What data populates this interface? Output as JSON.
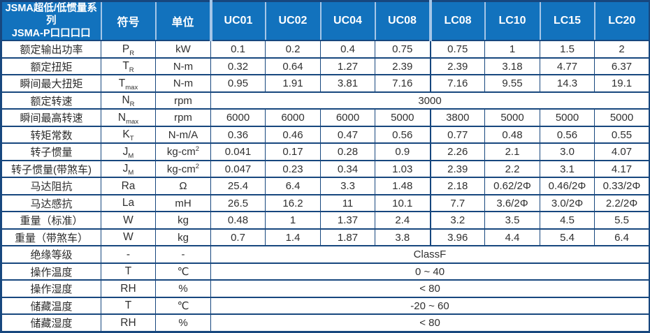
{
  "table": {
    "title_line1": "JSMA超低/低惯量系列",
    "title_line2": "JSMA-P口口口口",
    "header": {
      "symbol": "符号",
      "unit": "单位",
      "models": [
        "UC01",
        "UC02",
        "UC04",
        "UC08",
        "LC08",
        "LC10",
        "LC15",
        "LC20"
      ]
    },
    "rows": [
      {
        "label": "额定输出功率",
        "symbol": "P",
        "symbol_sub": "R",
        "unit": "kW",
        "values": [
          "0.1",
          "0.2",
          "0.4",
          "0.75",
          "0.75",
          "1",
          "1.5",
          "2"
        ]
      },
      {
        "label": "额定扭矩",
        "symbol": "T",
        "symbol_sub": "R",
        "unit": "N-m",
        "values": [
          "0.32",
          "0.64",
          "1.27",
          "2.39",
          "2.39",
          "3.18",
          "4.77",
          "6.37"
        ]
      },
      {
        "label": "瞬间最大扭矩",
        "symbol": "T",
        "symbol_sub": "max",
        "unit": "N-m",
        "values": [
          "0.95",
          "1.91",
          "3.81",
          "7.16",
          "7.16",
          "9.55",
          "14.3",
          "19.1"
        ]
      },
      {
        "label": "额定转速",
        "symbol": "N",
        "symbol_sub": "R",
        "unit": "rpm",
        "span": "3000"
      },
      {
        "label": "瞬间最高转速",
        "symbol": "N",
        "symbol_sub": "max",
        "unit": "rpm",
        "values": [
          "6000",
          "6000",
          "6000",
          "5000",
          "3800",
          "5000",
          "5000",
          "5000"
        ]
      },
      {
        "label": "转矩常数",
        "symbol": "K",
        "symbol_sub": "T",
        "unit": "N-m/A",
        "values": [
          "0.36",
          "0.46",
          "0.47",
          "0.56",
          "0.77",
          "0.48",
          "0.56",
          "0.55"
        ]
      },
      {
        "label": "转子惯量",
        "symbol": "J",
        "symbol_sub": "M",
        "unit": "kg-cm",
        "unit_sup": "2",
        "values": [
          "0.041",
          "0.17",
          "0.28",
          "0.9",
          "2.26",
          "2.1",
          "3.0",
          "4.07"
        ]
      },
      {
        "label": "转子惯量(带煞车)",
        "symbol": "J",
        "symbol_sub": "M",
        "unit": "kg-cm",
        "unit_sup": "2",
        "values": [
          "0.047",
          "0.23",
          "0.34",
          "1.03",
          "2.39",
          "2.2",
          "3.1",
          "4.17"
        ]
      },
      {
        "label": "马达阻抗",
        "symbol": "Ra",
        "unit": "Ω",
        "values": [
          "25.4",
          "6.4",
          "3.3",
          "1.48",
          "2.18",
          "0.62/2Φ",
          "0.46/2Φ",
          "0.33/2Φ"
        ]
      },
      {
        "label": "马达感抗",
        "symbol": "La",
        "unit": "mH",
        "values": [
          "26.5",
          "16.2",
          "11",
          "10.1",
          "7.7",
          "3.6/2Φ",
          "3.0/2Φ",
          "2.2/2Φ"
        ]
      },
      {
        "label": "重量（标准）",
        "symbol": "W",
        "unit": "kg",
        "values": [
          "0.48",
          "1",
          "1.37",
          "2.4",
          "3.2",
          "3.5",
          "4.5",
          "5.5"
        ]
      },
      {
        "label": "重量（带煞车）",
        "symbol": "W",
        "unit": "kg",
        "values": [
          "0.7",
          "1.4",
          "1.87",
          "3.8",
          "3.96",
          "4.4",
          "5.4",
          "6.4"
        ]
      },
      {
        "label": "绝缘等级",
        "symbol": "-",
        "unit": "-",
        "span": "ClassF"
      },
      {
        "label": "操作温度",
        "symbol": "T",
        "unit": "℃",
        "span": "0 ~ 40"
      },
      {
        "label": "操作湿度",
        "symbol": "RH",
        "unit": "%",
        "span": "< 80"
      },
      {
        "label": "储藏温度",
        "symbol": "T",
        "unit": "℃",
        "span": "-20 ~ 60"
      },
      {
        "label": "储藏湿度",
        "symbol": "RH",
        "unit": "%",
        "span": "< 80"
      }
    ],
    "colors": {
      "header_bg": "#1272BD",
      "border_dark": "#17477E",
      "header_separator": "#A5C6E8",
      "header_text": "#FFFFFF",
      "body_text": "#303030"
    }
  }
}
